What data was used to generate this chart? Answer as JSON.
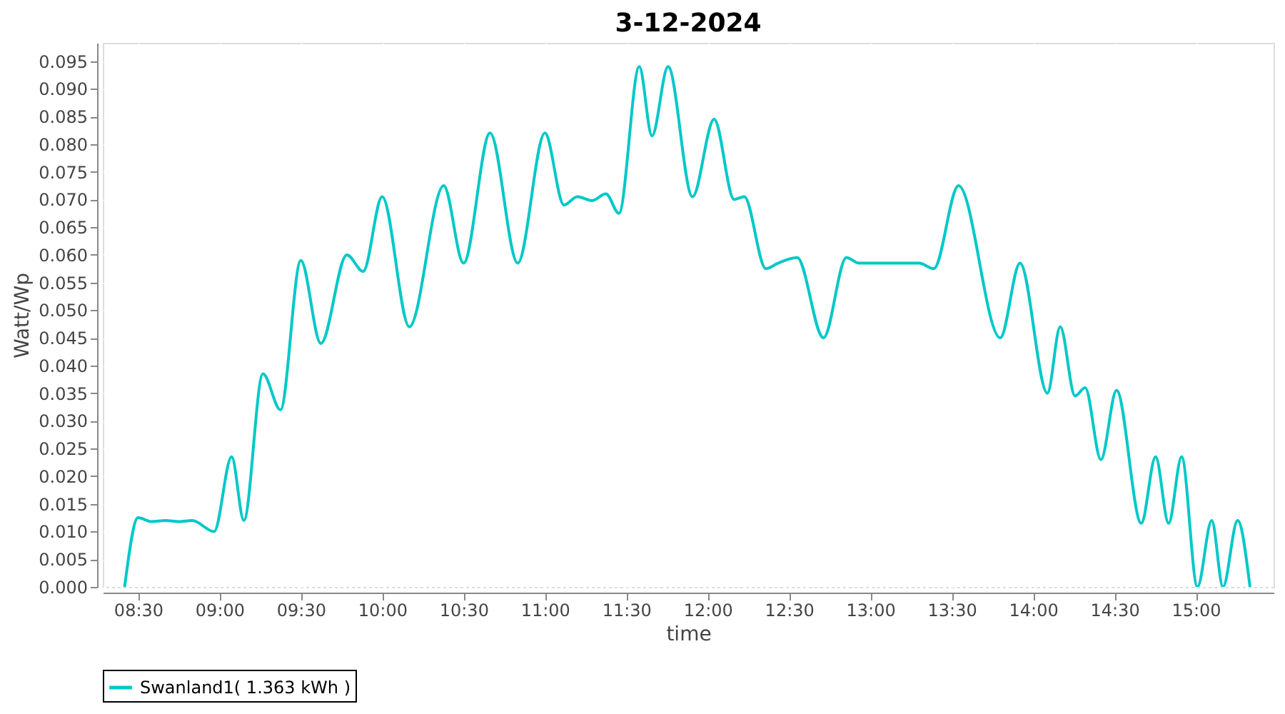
{
  "chart_data": {
    "type": "line",
    "title": "3-12-2024",
    "xlabel": "time",
    "ylabel": "Watt/Wp",
    "xlim": [
      8.283,
      15.478
    ],
    "xticks": [
      {
        "value": 8.5,
        "label": "08:30"
      },
      {
        "value": 9,
        "label": "09:00"
      },
      {
        "value": 9.5,
        "label": "09:30"
      },
      {
        "value": 10,
        "label": "10:00"
      },
      {
        "value": 10.5,
        "label": "10:30"
      },
      {
        "value": 11,
        "label": "11:00"
      },
      {
        "value": 11.5,
        "label": "11:30"
      },
      {
        "value": 12,
        "label": "12:00"
      },
      {
        "value": 12.5,
        "label": "12:30"
      },
      {
        "value": 13,
        "label": "13:00"
      },
      {
        "value": 13.5,
        "label": "13:30"
      },
      {
        "value": 14,
        "label": "14:00"
      },
      {
        "value": 14.5,
        "label": "14:30"
      },
      {
        "value": 15,
        "label": "15:00"
      }
    ],
    "ylim": [
      0,
      0.0983
    ],
    "yticks": [
      {
        "value": 0,
        "label": "0.000"
      },
      0.005,
      {
        "value": 0.01,
        "label": "0.010"
      },
      0.015,
      {
        "value": 0.02,
        "label": "0.020"
      },
      0.025,
      {
        "value": 0.03,
        "label": "0.030"
      },
      0.035,
      {
        "value": 0.04,
        "label": "0.040"
      },
      0.045,
      {
        "value": 0.05,
        "label": "0.050"
      },
      0.055,
      {
        "value": 0.06,
        "label": "0.060"
      },
      0.065,
      {
        "value": 0.07,
        "label": "0.070"
      },
      0.075,
      {
        "value": 0.08,
        "label": "0.080"
      },
      0.085,
      {
        "value": 0.09,
        "label": "0.090"
      },
      0.095
    ],
    "grid": true,
    "legend": "bottom",
    "marker": "none",
    "line_style": "solid",
    "series": [
      {
        "name": "Swanland1( 1.363 kWh )",
        "color": "#00c8c8",
        "x": [
          8.417,
          8.5,
          8.583,
          8.667,
          8.75,
          8.833,
          8.967,
          9.075,
          9.15,
          9.267,
          9.375,
          9.5,
          9.623,
          9.783,
          9.883,
          10.0,
          10.167,
          10.378,
          10.5,
          10.663,
          10.833,
          11.0,
          11.117,
          11.2,
          11.288,
          11.375,
          11.455,
          11.58,
          11.658,
          11.757,
          11.907,
          12.04,
          12.163,
          12.225,
          12.358,
          12.433,
          12.55,
          12.712,
          12.853,
          12.93,
          13.192,
          13.3,
          13.39,
          13.542,
          13.798,
          13.92,
          14.088,
          14.167,
          14.258,
          14.32,
          14.417,
          14.513,
          14.665,
          14.753,
          14.833,
          14.913,
          15.01,
          15.098,
          15.167,
          15.257,
          15.333
        ],
        "values": [
          0,
          0.0125,
          0.0118,
          0.012,
          0.0118,
          0.012,
          0.01,
          0.0235,
          0.012,
          0.0385,
          0.032,
          0.059,
          0.044,
          0.06,
          0.057,
          0.0705,
          0.047,
          0.0725,
          0.0585,
          0.082,
          0.0585,
          0.082,
          0.069,
          0.0705,
          0.0698,
          0.071,
          0.0675,
          0.094,
          0.0815,
          0.094,
          0.0705,
          0.0845,
          0.07,
          0.0705,
          0.0575,
          0.0585,
          0.0595,
          0.045,
          0.0595,
          0.0585,
          0.0585,
          0.0585,
          0.0575,
          0.0725,
          0.045,
          0.0585,
          0.035,
          0.047,
          0.0345,
          0.036,
          0.023,
          0.0355,
          0.0115,
          0.0235,
          0.0115,
          0.0235,
          0,
          0.012,
          0,
          0.012,
          0
        ]
      }
    ]
  }
}
